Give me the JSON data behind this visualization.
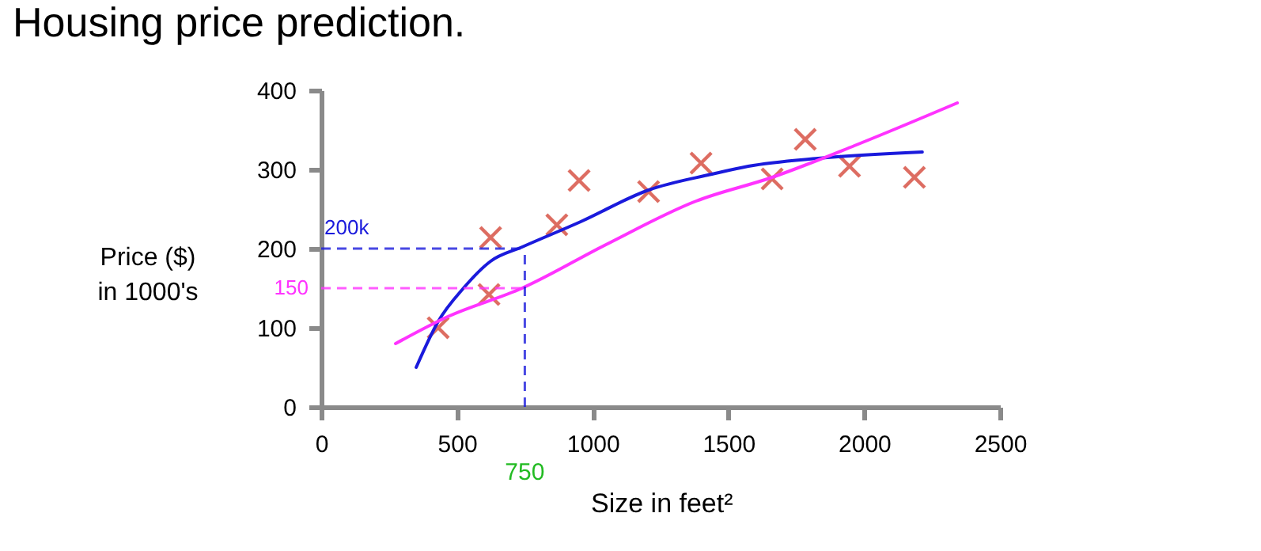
{
  "chart_data": {
    "type": "scatter",
    "title": "Housing price prediction.",
    "xlabel": "Size in feet²",
    "ylabel": "Price ($)\nin 1000's",
    "xlim": [
      0,
      2500
    ],
    "xticks": [
      0,
      500,
      1000,
      1500,
      2000,
      2500
    ],
    "ylim": [
      0,
      400
    ],
    "yticks": [
      0,
      100,
      200,
      300,
      400
    ],
    "grid": false,
    "legend": false,
    "series": [
      {
        "color": "#d03020",
        "marker": "cross",
        "x": [
          431,
          624,
          618,
          868,
          950,
          1206,
          1399,
          1661,
          1783,
          1946,
          2185
        ],
        "values": [
          100,
          214,
          142,
          230,
          286,
          272,
          308,
          288,
          338,
          304,
          290
        ]
      },
      {
        "type": "line",
        "color": "#1a1adc",
        "line_style": "solid",
        "marker": "none",
        "x": [
          350,
          431,
          524,
          624,
          740,
          956,
          1206,
          1439,
          1573,
          1830,
          2214
        ],
        "values": [
          50,
          108,
          150,
          184,
          202,
          234,
          274,
          294,
          304,
          314,
          322
        ]
      },
      {
        "type": "line",
        "color": "#ff33ff",
        "line_style": "solid",
        "marker": "none",
        "x": [
          274,
          466,
          740,
          1049,
          1381,
          1661,
          1964,
          2343
        ],
        "values": [
          80,
          114,
          150,
          205,
          260,
          290,
          330,
          384
        ]
      }
    ],
    "ref_lines": [
      {
        "axis": "y",
        "value": 200,
        "label": "200k",
        "color": "#1a1adc",
        "line_style": "dashed"
      },
      {
        "axis": "y",
        "value": 150,
        "label": "150",
        "color": "#ff33ff",
        "line_style": "dashed"
      },
      {
        "axis": "x",
        "value": 750,
        "label": "750",
        "color": "#1a1adc",
        "line_style": "dashed"
      }
    ]
  }
}
